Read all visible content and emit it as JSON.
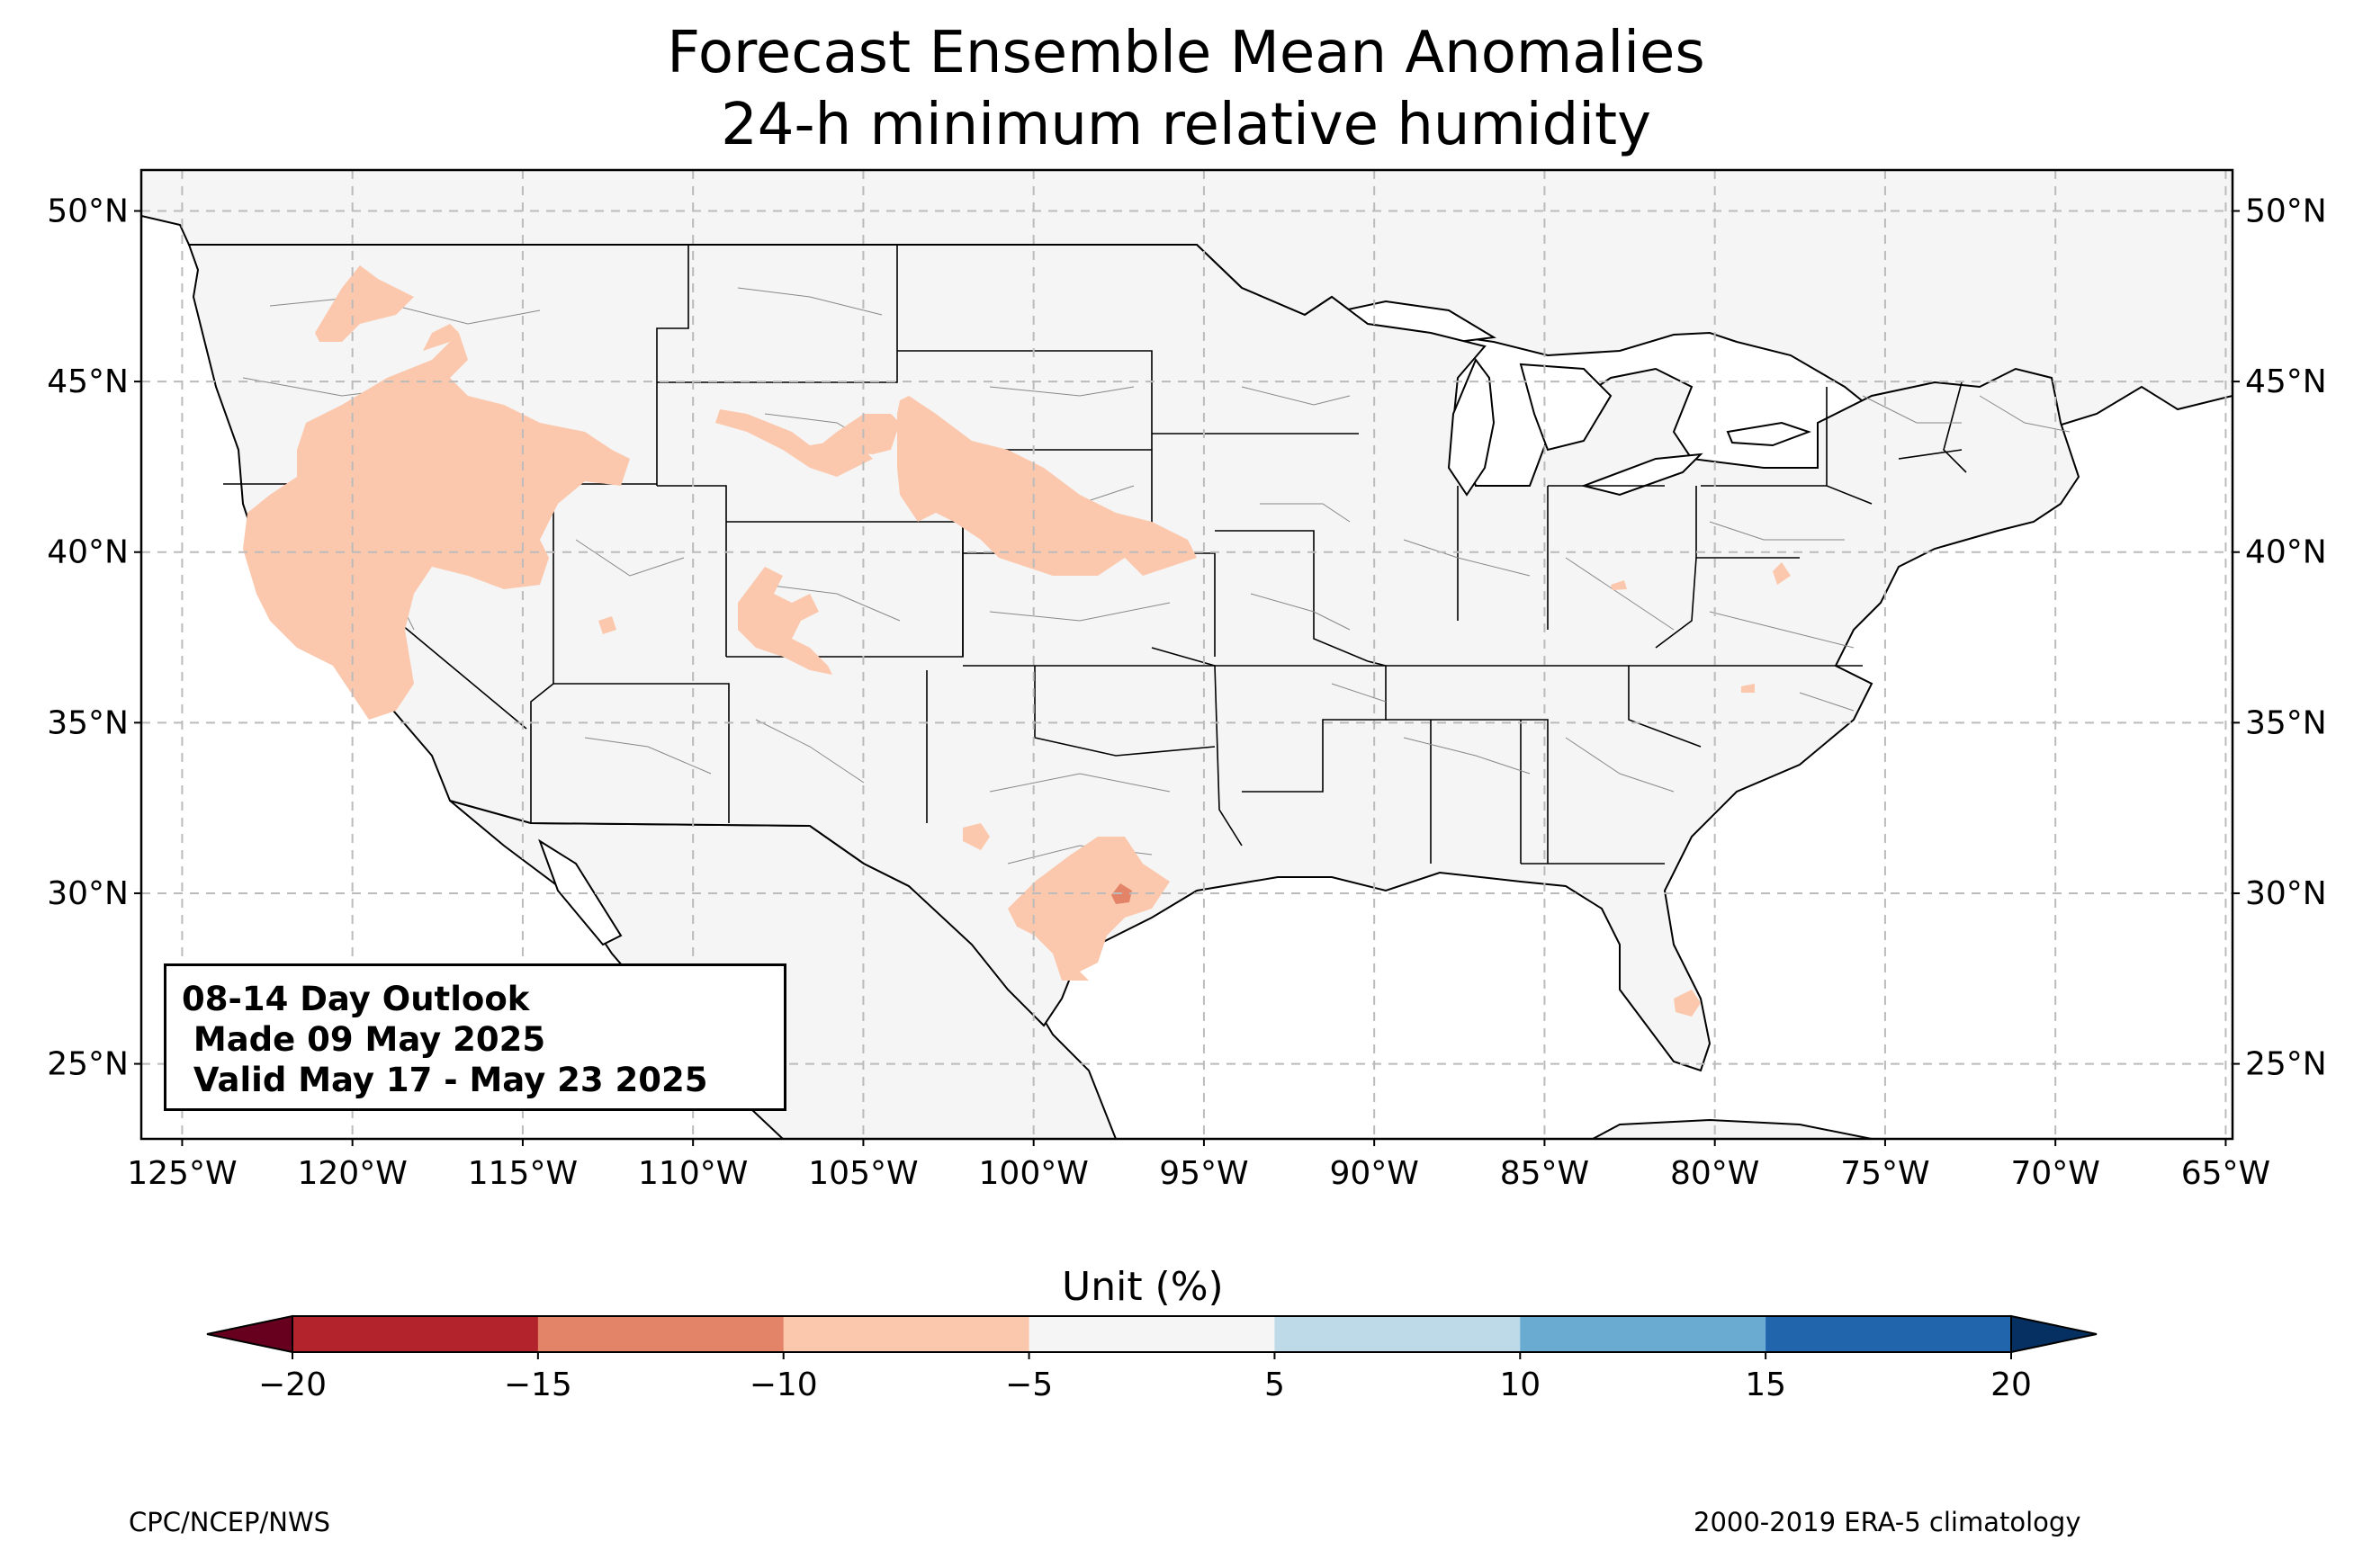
{
  "title": {
    "line1": "Forecast Ensemble Mean Anomalies",
    "line2": "24-h minimum relative humidity"
  },
  "map": {
    "extent": {
      "lon": [
        -126.2,
        -64.8
      ],
      "lat": [
        22.8,
        51.2
      ]
    },
    "lat_ticks": [
      {
        "value": 50,
        "label": "50°N"
      },
      {
        "value": 45,
        "label": "45°N"
      },
      {
        "value": 40,
        "label": "40°N"
      },
      {
        "value": 35,
        "label": "35°N"
      },
      {
        "value": 30,
        "label": "30°N"
      },
      {
        "value": 25,
        "label": "25°N"
      }
    ],
    "lon_ticks": [
      {
        "value": -125,
        "label": "125°W"
      },
      {
        "value": -120,
        "label": "120°W"
      },
      {
        "value": -115,
        "label": "115°W"
      },
      {
        "value": -110,
        "label": "110°W"
      },
      {
        "value": -105,
        "label": "105°W"
      },
      {
        "value": -100,
        "label": "100°W"
      },
      {
        "value": -95,
        "label": "95°W"
      },
      {
        "value": -90,
        "label": "90°W"
      },
      {
        "value": -85,
        "label": "85°W"
      },
      {
        "value": -80,
        "label": "80°W"
      },
      {
        "value": -75,
        "label": "75°W"
      },
      {
        "value": -70,
        "label": "70°W"
      },
      {
        "value": -65,
        "label": "65°W"
      }
    ],
    "gridlines": true,
    "land_color": "#f5f5f5",
    "anomaly_regions": [
      {
        "name": "Pacific Northwest",
        "category": "-10 to -5",
        "color": "#fbc8ad"
      },
      {
        "name": "California / Great Basin",
        "category": "-10 to -5",
        "color": "#fbc8ad"
      },
      {
        "name": "Wyoming",
        "category": "-10 to -5",
        "color": "#fbc8ad"
      },
      {
        "name": "Nebraska / South Dakota",
        "category": "-10 to -5",
        "color": "#fbc8ad"
      },
      {
        "name": "Colorado",
        "category": "-10 to -5",
        "color": "#fbc8ad"
      },
      {
        "name": "Central Texas",
        "category": "-10 to -5",
        "color": "#fbc8ad"
      },
      {
        "name": "Central Texas core",
        "category": "-15 to -10",
        "color": "#e38469"
      },
      {
        "name": "Florida",
        "category": "-10 to -5",
        "color": "#fbc8ad"
      },
      {
        "name": "Virginia",
        "category": "-10 to -5",
        "color": "#fbc8ad"
      }
    ]
  },
  "outlook_box": {
    "line1": "08-14 Day Outlook",
    "line2": " Made 09 May 2025",
    "line3": " Valid May 17 - May 23 2025"
  },
  "colorbar": {
    "title": "Unit (%)",
    "ticks": [
      "−20",
      "−15",
      "−10",
      "−5",
      "5",
      "10",
      "15",
      "20"
    ],
    "colors": [
      "#67001f",
      "#b2232b",
      "#e38469",
      "#fbc8ad",
      "#f5f5f5",
      "#bed9e8",
      "#6aabd1",
      "#2165ac",
      "#053061"
    ],
    "extend": "both"
  },
  "footer": {
    "left": "CPC/NCEP/NWS",
    "right": "2000-2019 ERA-5 climatology"
  }
}
